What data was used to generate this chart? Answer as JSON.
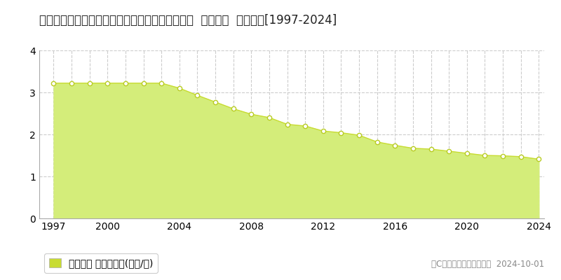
{
  "title": "青森県東津軽郡蝓田村大字瀬辺地字山田３５番９  基準地価  地価推移[1997-2024]",
  "years": [
    1997,
    1998,
    1999,
    2000,
    2001,
    2002,
    2003,
    2004,
    2005,
    2006,
    2007,
    2008,
    2009,
    2010,
    2011,
    2012,
    2013,
    2014,
    2015,
    2016,
    2017,
    2018,
    2019,
    2020,
    2021,
    2022,
    2023,
    2024
  ],
  "values": [
    3.22,
    3.22,
    3.22,
    3.22,
    3.22,
    3.22,
    3.22,
    3.1,
    2.93,
    2.77,
    2.61,
    2.48,
    2.4,
    2.24,
    2.2,
    2.08,
    2.04,
    1.98,
    1.82,
    1.74,
    1.67,
    1.65,
    1.6,
    1.55,
    1.5,
    1.49,
    1.47,
    1.41
  ],
  "fill_color": "#d4ed7a",
  "line_color": "#c8dc32",
  "marker_facecolor": "#ffffff",
  "marker_edgecolor": "#b8cc22",
  "ylim": [
    0,
    4
  ],
  "yticks": [
    0,
    1,
    2,
    3,
    4
  ],
  "xticks": [
    1997,
    2000,
    2004,
    2008,
    2012,
    2016,
    2020,
    2024
  ],
  "grid_color": "#cccccc",
  "background_color": "#ffffff",
  "legend_label": "基準地価 平均坪単価(万円/坪)",
  "legend_marker_color": "#c8dc32",
  "copyright_text": "（C）土地価格ドットコム  2024-10-01",
  "title_fontsize": 12,
  "tick_fontsize": 10,
  "legend_fontsize": 10,
  "copyright_fontsize": 8.5
}
